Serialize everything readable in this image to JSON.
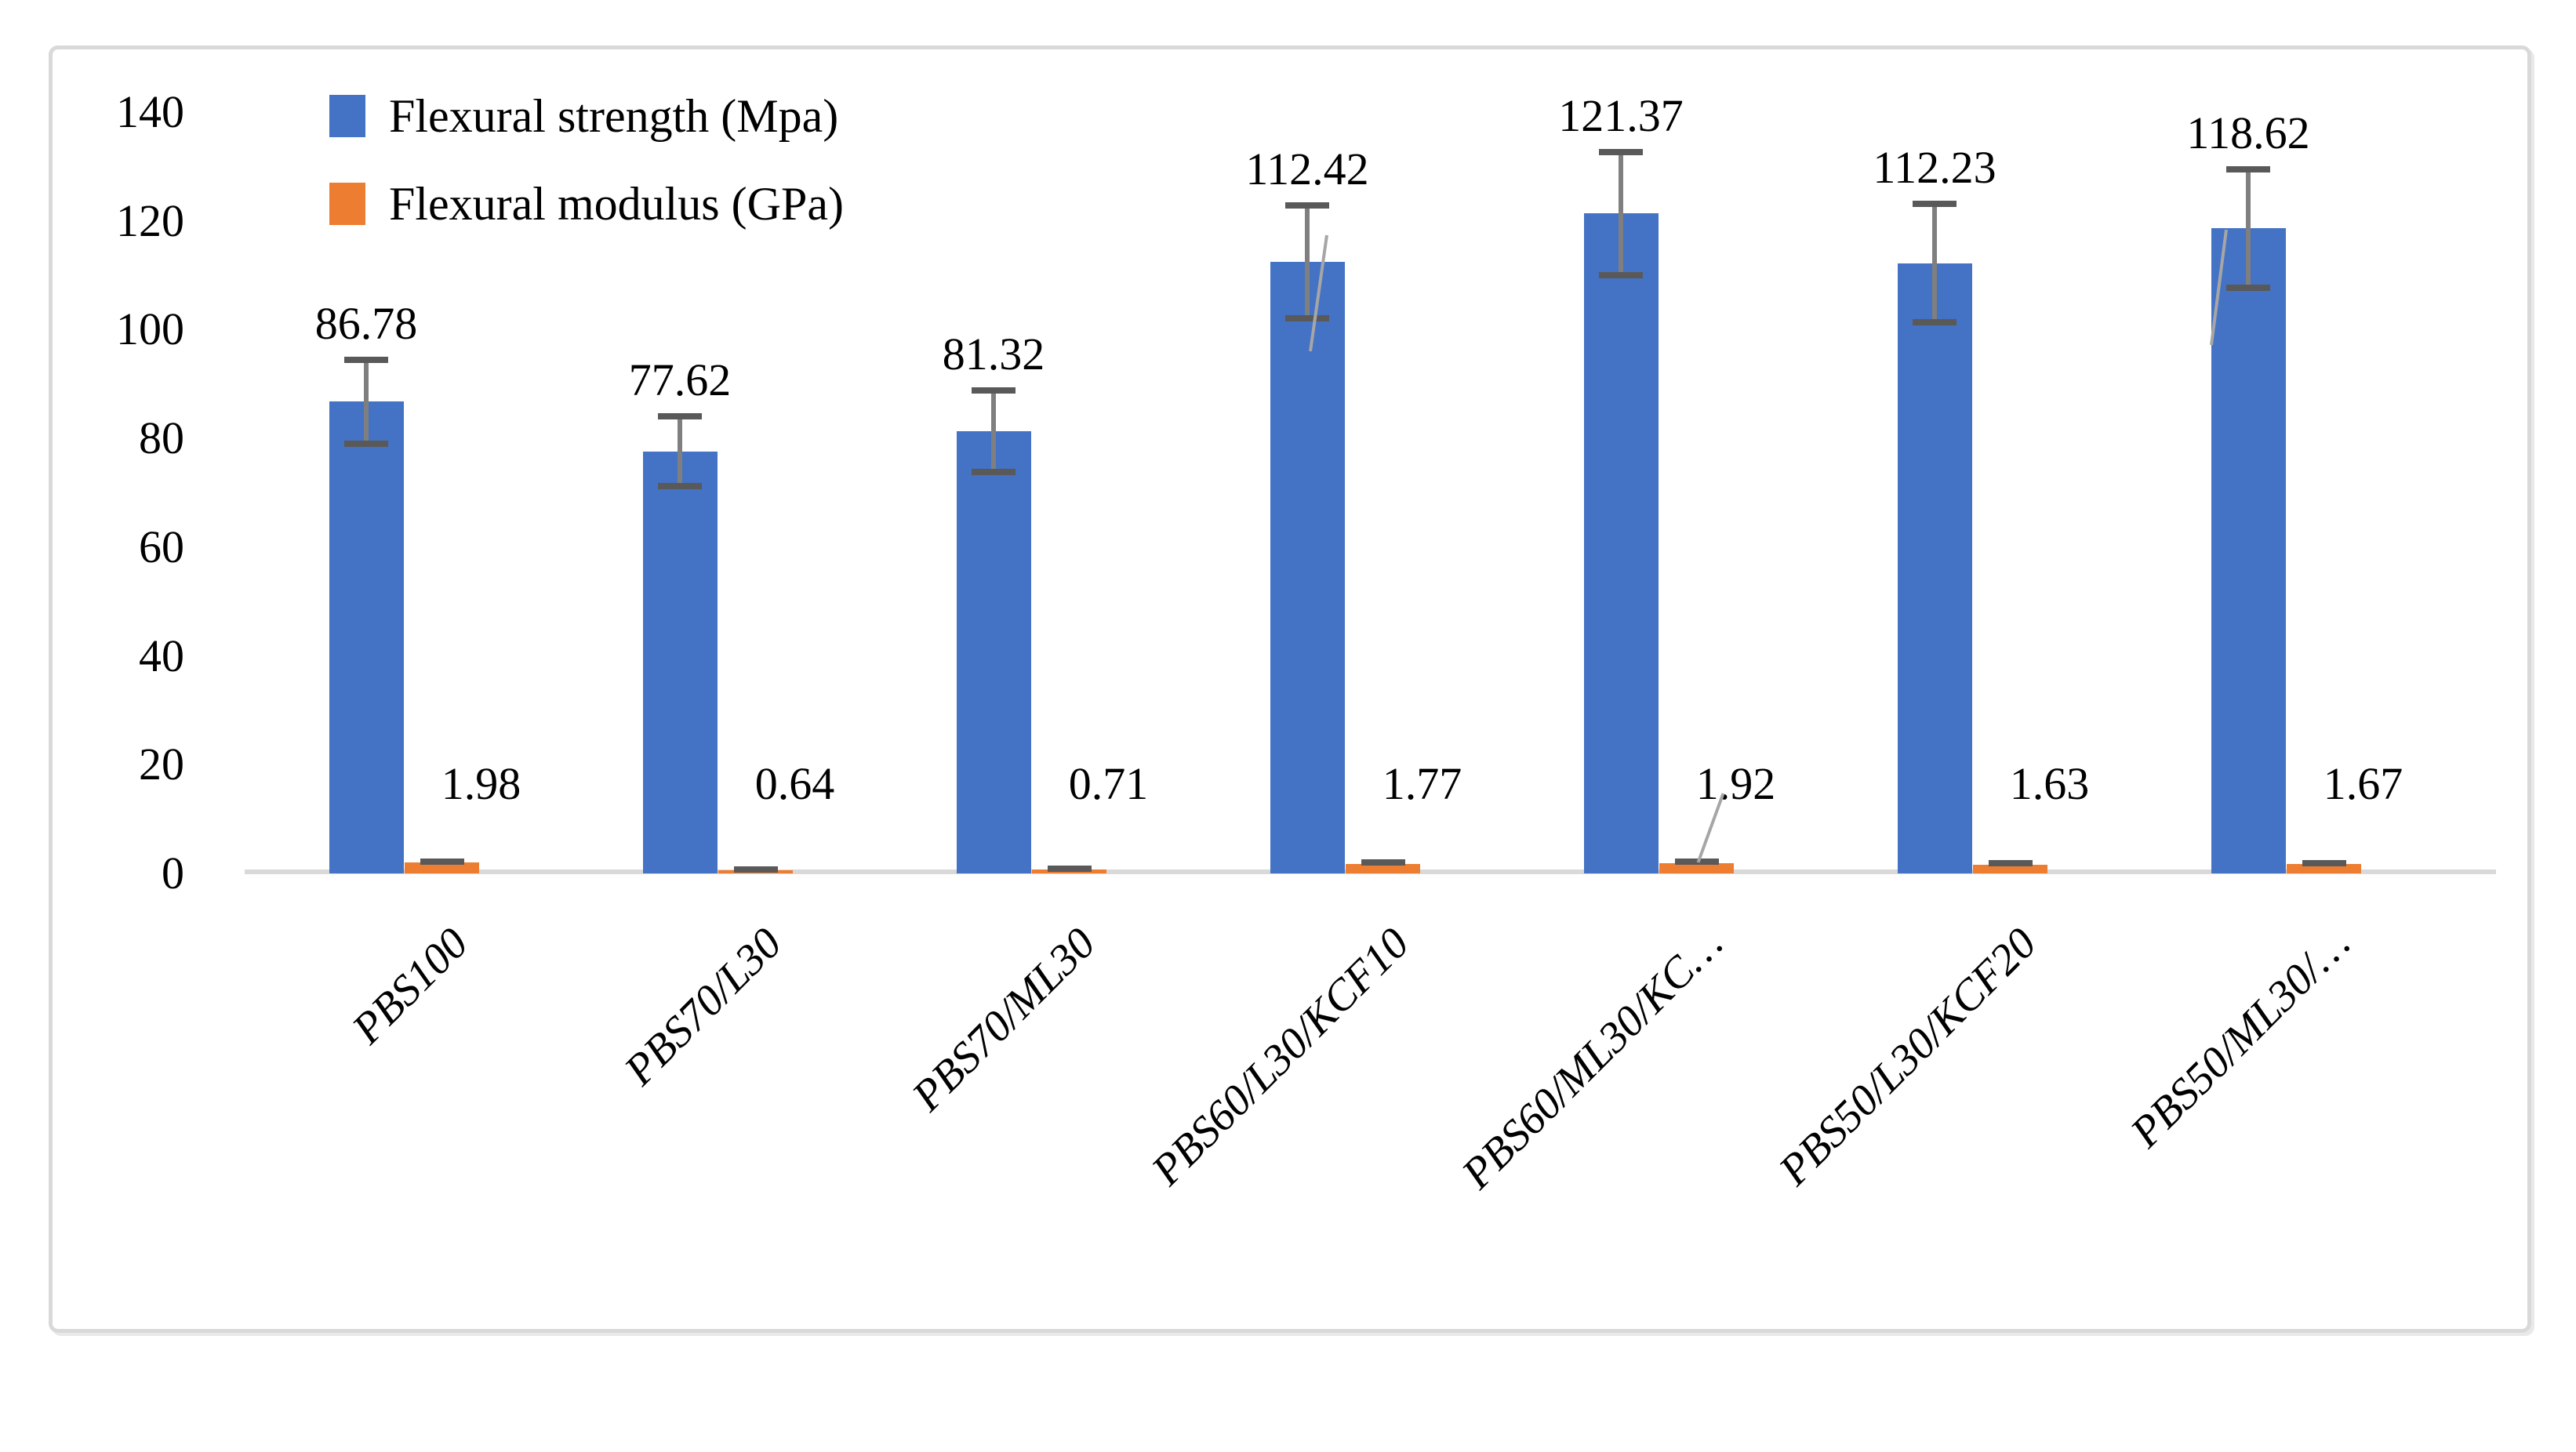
{
  "figure": {
    "description": "Grouped bar chart with error bars comparing flexural strength and flexural modulus of PBS composites"
  },
  "legend": {
    "items": [
      {
        "label": "Flexural strength (Mpa)",
        "color": "#4472C4"
      },
      {
        "label": "Flexural modulus (GPa)",
        "color": "#ED7D31"
      }
    ]
  },
  "chart_data": {
    "type": "bar",
    "categories": [
      "PBS100",
      "PBS70/L30",
      "PBS70/ML30",
      "PBS60/L30/KCF10",
      "PBS60/ML30/KC…",
      "PBS50/L30/KCF20",
      "PBS50/ML30/…"
    ],
    "series": [
      {
        "name": "Flexural strength (Mpa)",
        "color": "#4472C4",
        "values": [
          86.78,
          77.62,
          81.32,
          112.42,
          121.37,
          112.23,
          118.62
        ],
        "data_labels": [
          "86.78",
          "77.62",
          "81.32",
          "112.42",
          "121.37",
          "112.23",
          "118.62"
        ],
        "error_bars": [
          7.7,
          6.4,
          7.5,
          10.4,
          11.3,
          10.9,
          10.9
        ]
      },
      {
        "name": "Flexural modulus (GPa)",
        "color": "#ED7D31",
        "values": [
          1.98,
          0.64,
          0.71,
          1.77,
          1.92,
          1.63,
          1.67
        ],
        "data_labels": [
          "1.98",
          "0.64",
          "0.71",
          "1.77",
          "1.92",
          "1.63",
          "1.67"
        ],
        "error_bars": [
          0.25,
          0.15,
          0.15,
          0.2,
          0.3,
          0.2,
          0.2
        ]
      }
    ],
    "ylim": [
      0,
      140
    ],
    "y_ticks": [
      0,
      20,
      40,
      60,
      80,
      100,
      120,
      140
    ],
    "xlabel": "",
    "ylabel": "",
    "title": "",
    "grid": false,
    "legend_position": "top-left",
    "category_label_rotation_deg": -45,
    "label_leader_lines": [
      {
        "series": 0,
        "index": 3
      },
      {
        "series": 0,
        "index": 6
      },
      {
        "series": 1,
        "index": 4
      }
    ]
  },
  "colors": {
    "bar_blue": "#4472C4",
    "bar_orange": "#ED7D31",
    "error_cap": "#595959",
    "error_whisker": "#7F7F7F",
    "leader_line": "#A6A6A6",
    "axis_line": "#D9D9D9",
    "frame_border": "#D9D9D9",
    "text": "#000000"
  }
}
